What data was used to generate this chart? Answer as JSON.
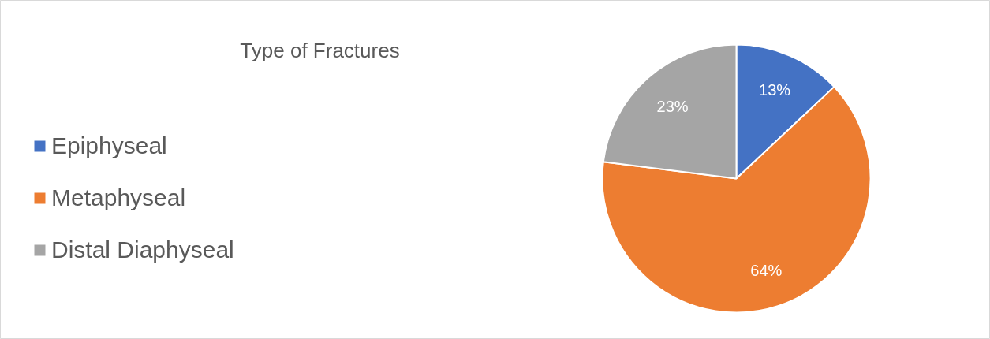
{
  "chart_data": {
    "type": "pie",
    "title": "Type of Fractures",
    "categories": [
      "Epiphyseal",
      "Metaphyseal",
      "Distal Diaphyseal"
    ],
    "values": [
      13,
      64,
      23
    ],
    "colors": [
      "#4472c4",
      "#ed7d31",
      "#a5a5a5"
    ],
    "value_labels": [
      "13%",
      "64%",
      "23%"
    ],
    "legend": "left"
  }
}
